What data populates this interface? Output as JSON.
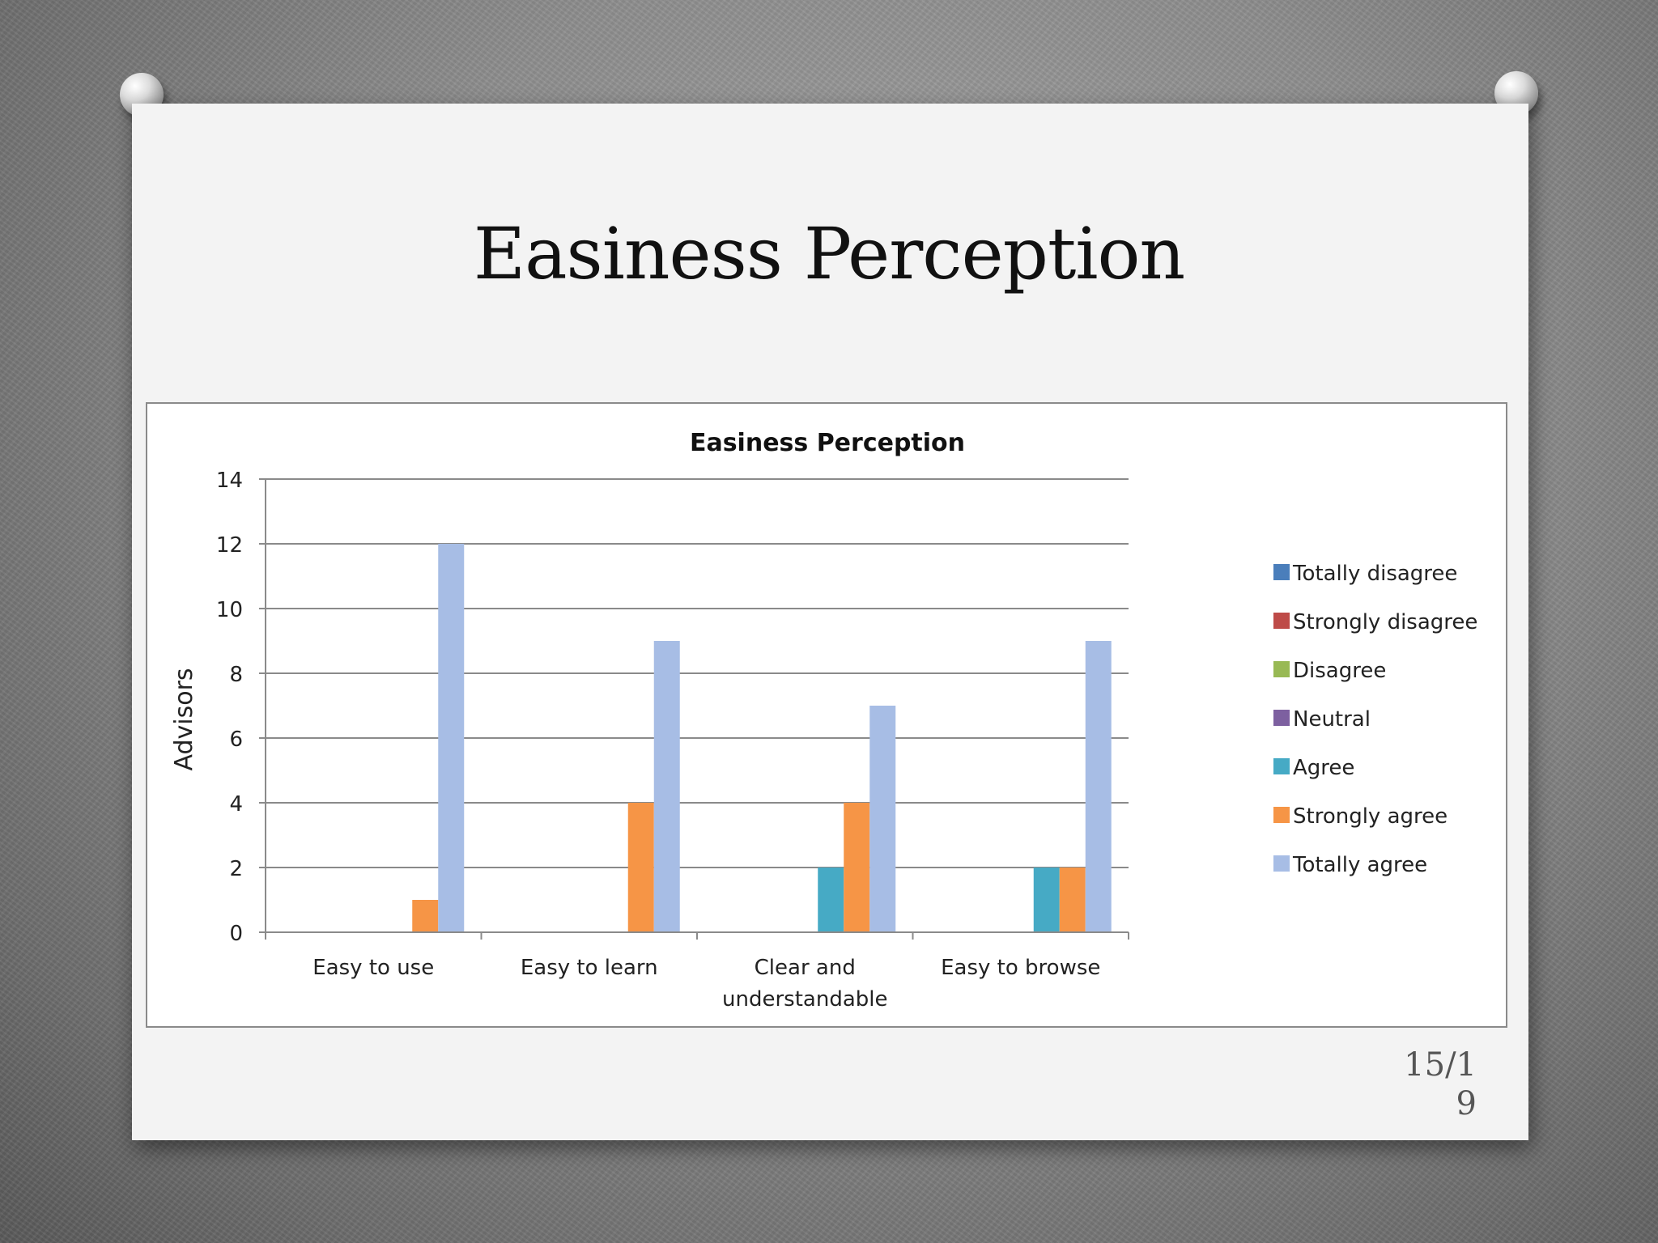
{
  "slide": {
    "title": "Easiness Perception",
    "page_number": "15/1\n9"
  },
  "chart_data": {
    "type": "bar",
    "title": "Easiness Perception",
    "xlabel": "",
    "ylabel": "Advisors",
    "ylim": [
      0,
      14
    ],
    "yticks": [
      0,
      2,
      4,
      6,
      8,
      10,
      12,
      14
    ],
    "grid": true,
    "legend_position": "right",
    "categories": [
      "Easy to use",
      "Easy to learn",
      "Clear and understandable",
      "Easy to browse"
    ],
    "category_lines": [
      [
        "Easy to use"
      ],
      [
        "Easy to learn"
      ],
      [
        "Clear and",
        "understandable"
      ],
      [
        "Easy to browse"
      ]
    ],
    "series": [
      {
        "name": "Totally disagree",
        "color": "#4a7ebb",
        "values": [
          0,
          0,
          0,
          0
        ]
      },
      {
        "name": "Strongly disagree",
        "color": "#be4b48",
        "values": [
          0,
          0,
          0,
          0
        ]
      },
      {
        "name": "Disagree",
        "color": "#98b954",
        "values": [
          0,
          0,
          0,
          0
        ]
      },
      {
        "name": "Neutral",
        "color": "#7d60a0",
        "values": [
          0,
          0,
          0,
          0
        ]
      },
      {
        "name": "Agree",
        "color": "#46aac5",
        "values": [
          0,
          0,
          2,
          2
        ]
      },
      {
        "name": "Strongly agree",
        "color": "#f69546",
        "values": [
          1,
          4,
          4,
          2
        ]
      },
      {
        "name": "Totally agree",
        "color": "#a7bde5",
        "values": [
          12,
          9,
          7,
          9
        ]
      }
    ]
  }
}
